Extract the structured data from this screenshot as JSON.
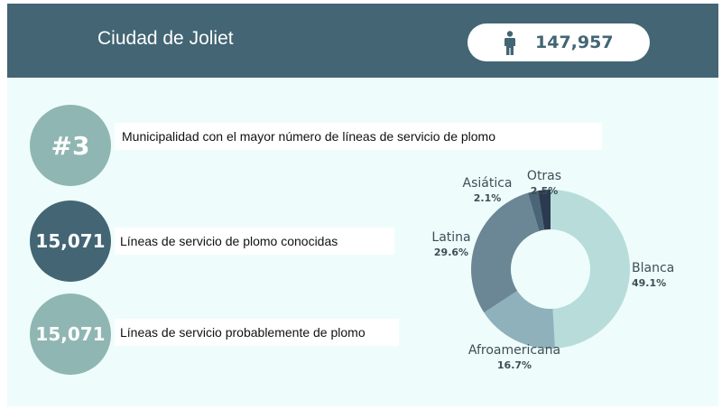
{
  "header": {
    "title": "Ciudad de Joliet",
    "population": "147,957",
    "population_icon": "person-icon"
  },
  "stats": [
    {
      "value": "#3",
      "label": "Municipalidad con el mayor número de líneas de servicio de plomo",
      "color": "#8fb6b3"
    },
    {
      "value": "15,071",
      "label": "Líneas de servicio de plomo conocidas",
      "color": "#436574"
    },
    {
      "value": "15,071",
      "label": "Líneas de servicio probablemente de plomo",
      "color": "#8fb6b3"
    }
  ],
  "colors": {
    "header_bg": "#436574",
    "panel_bg": "#eefdfb"
  },
  "chart_data": {
    "type": "pie",
    "variant": "donut",
    "title": "",
    "categories": [
      "Blanca",
      "Afroamericana",
      "Latina",
      "Asiática",
      "Otras"
    ],
    "values": [
      49.1,
      16.7,
      29.6,
      2.1,
      2.5
    ],
    "value_labels": [
      "49.1%",
      "16.7%",
      "29.6%",
      "2.1%",
      "2.5%"
    ],
    "colors": [
      "#b8dcda",
      "#8fb1bb",
      "#6b8795",
      "#4a6478",
      "#2b3a4f"
    ],
    "legend": "none (labels beside slices)"
  }
}
